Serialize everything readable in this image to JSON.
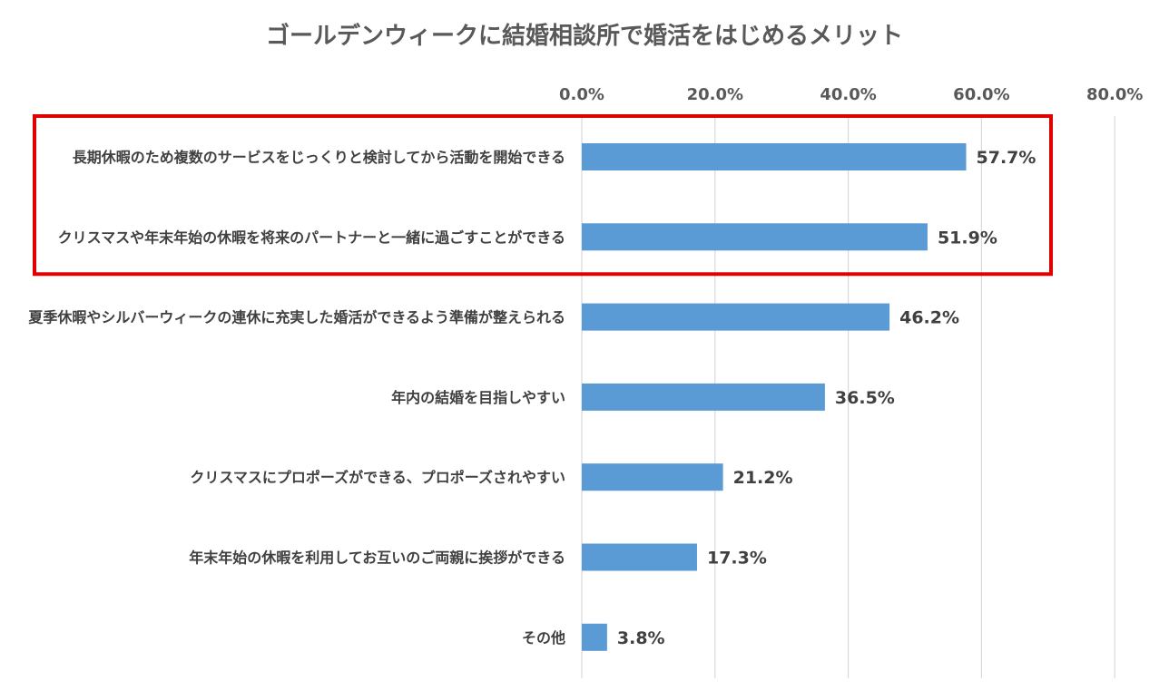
{
  "chart_data": {
    "type": "bar",
    "orientation": "horizontal",
    "title": "ゴールデンウィークに結婚相談所で婚活をはじめるメリット",
    "xlabel": "",
    "ylabel": "",
    "xlim": [
      0,
      80
    ],
    "x_ticks": [
      "0.0%",
      "20.0%",
      "40.0%",
      "60.0%",
      "80.0%"
    ],
    "x_axis_position": "top",
    "grid": true,
    "legend": "none",
    "categories": [
      "長期休暇のため複数のサービスをじっくりと検討してから活動を開始できる",
      "クリスマスや年末年始の休暇を将来のパートナーと一緒に過ごすことができる",
      "夏季休暇やシルバーウィークの連休に充実した婚活ができるよう準備が整えられる",
      "年内の結婚を目指しやすい",
      "クリスマスにプロポーズができる、プロポーズされやすい",
      "年末年始の休暇を利用してお互いのご両親に挨拶ができる",
      "その他"
    ],
    "values": [
      57.7,
      51.9,
      46.2,
      36.5,
      21.2,
      17.3,
      3.8
    ],
    "value_labels": [
      "57.7%",
      "51.9%",
      "46.2%",
      "36.5%",
      "21.2%",
      "17.3%",
      "3.8%"
    ],
    "highlight": {
      "categories": [
        0,
        1
      ],
      "color": "#e00000"
    },
    "colors": {
      "bar": "#5b9bd5",
      "grid": "#d9d9d9",
      "text": "#404040",
      "title": "#595959"
    }
  }
}
